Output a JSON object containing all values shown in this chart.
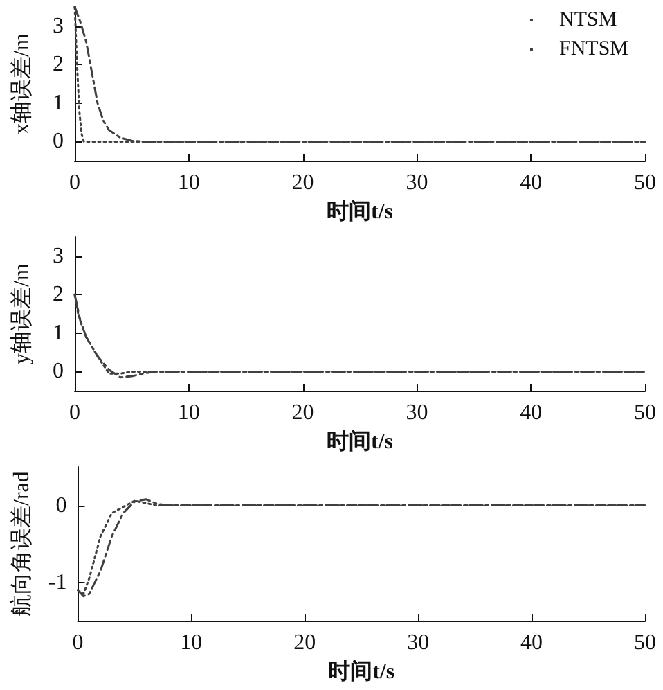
{
  "chart_data": [
    {
      "type": "line",
      "xlabel": "时间t/s",
      "ylabel": "x轴误差/m",
      "xlim": [
        0,
        50
      ],
      "xticks": [
        0,
        10,
        20,
        30,
        40,
        50
      ],
      "ylim": [
        -0.5,
        3.5
      ],
      "yticks": [
        0,
        1,
        2,
        3
      ],
      "grid": false,
      "legend": "top right",
      "marker": "none",
      "series": [
        {
          "name": "NTSM",
          "color": "#404040",
          "line_style": "dashdot",
          "x": [
            0,
            0.5,
            1,
            1.5,
            2,
            2.5,
            3,
            4,
            5,
            6,
            50
          ],
          "values": [
            3.5,
            3.1,
            2.6,
            1.8,
            1.0,
            0.55,
            0.3,
            0.1,
            0.02,
            0,
            0
          ]
        },
        {
          "name": "FNTSM",
          "color": "#404040",
          "line_style": "dotted",
          "x": [
            0,
            0.2,
            0.4,
            0.6,
            0.8,
            50
          ],
          "values": [
            3.5,
            2.0,
            0.8,
            0.2,
            0,
            0
          ]
        }
      ]
    },
    {
      "type": "line",
      "xlabel": "时间t/s",
      "ylabel": "y轴误差/m",
      "xlim": [
        0,
        50
      ],
      "xticks": [
        0,
        10,
        20,
        30,
        40,
        50
      ],
      "ylim": [
        -0.5,
        3.5
      ],
      "yticks": [
        0,
        1,
        2,
        3
      ],
      "grid": false,
      "legend": false,
      "marker": "none",
      "series": [
        {
          "color": "#404040",
          "line_style": "dashdot",
          "x": [
            0,
            0.5,
            1,
            2,
            3,
            4,
            5,
            6,
            7,
            50
          ],
          "values": [
            2.0,
            1.3,
            0.9,
            0.4,
            0.05,
            -0.15,
            -0.12,
            -0.05,
            0,
            0
          ]
        },
        {
          "color": "#404040",
          "line_style": "dotted",
          "x": [
            0,
            0.3,
            1,
            2,
            3,
            4,
            5,
            50
          ],
          "values": [
            2.0,
            1.5,
            0.9,
            0.4,
            -0.05,
            -0.05,
            0,
            0
          ]
        }
      ]
    },
    {
      "type": "line",
      "xlabel": "时间t/s",
      "ylabel": "航向角误差/rad",
      "xlim": [
        0,
        50
      ],
      "xticks": [
        0,
        10,
        20,
        30,
        40,
        50
      ],
      "ylim": [
        -1.5,
        0.5
      ],
      "yticks": [
        -1,
        0
      ],
      "grid": false,
      "legend": false,
      "marker": "none",
      "series": [
        {
          "color": "#404040",
          "line_style": "dashdot",
          "x": [
            0,
            0.5,
            1,
            2,
            3,
            4,
            5,
            6,
            7,
            8,
            50
          ],
          "values": [
            -1.1,
            -1.18,
            -1.15,
            -0.85,
            -0.4,
            -0.1,
            0.05,
            0.08,
            0.02,
            0,
            0
          ]
        },
        {
          "color": "#404040",
          "line_style": "dotted",
          "x": [
            0,
            0.5,
            1,
            2,
            3,
            4,
            5,
            6,
            7,
            50
          ],
          "values": [
            -1.1,
            -1.15,
            -0.95,
            -0.4,
            -0.1,
            -0.02,
            0.06,
            0.03,
            0,
            0
          ]
        }
      ]
    }
  ]
}
